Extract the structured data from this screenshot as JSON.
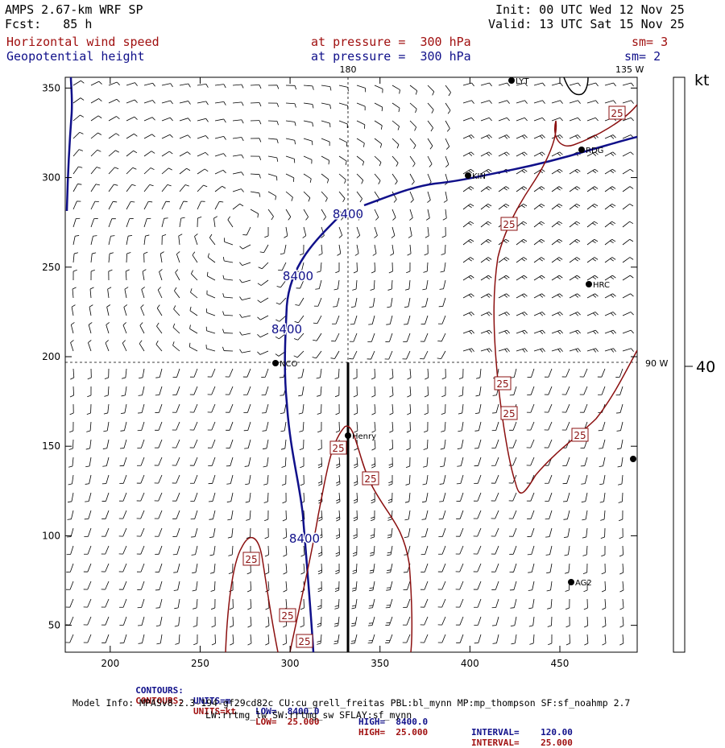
{
  "header": {
    "model": "AMPS 2.67-km WRF SP",
    "init": "Init: 00 UTC Wed 12 Nov 25",
    "forecast": "Fcst:   85 h",
    "valid": "Valid: 13 UTC Sat 15 Nov 25",
    "field1_name": "Horizontal wind speed",
    "field1_level": "at pressure =  300 hPa",
    "field1_sm": "sm= 3",
    "field2_name": "Geopotential height",
    "field2_level": "at pressure =  300 hPa",
    "field2_sm": "sm= 2"
  },
  "chart_data": {
    "type": "contour map with wind barbs",
    "title": "Horizontal wind speed / Geopotential height at 300 hPa",
    "x_axis": {
      "range": [
        175,
        493
      ],
      "ticks": [
        200,
        250,
        300,
        350,
        400,
        450
      ]
    },
    "y_axis": {
      "range": [
        35,
        356
      ],
      "ticks": [
        50,
        100,
        150,
        200,
        250,
        300,
        350
      ]
    },
    "grid_lines": {
      "meridian_180": {
        "label": "180",
        "x": 334
      },
      "parallel_90W": {
        "label": "90 W",
        "y": 196
      },
      "corner_label": "135 W"
    },
    "height_contours": {
      "units": "m",
      "value": 8400,
      "labels": [
        "8400",
        "8400",
        "8400",
        "8400"
      ]
    },
    "speed_contours": {
      "units": "kt",
      "value": 25,
      "labels": [
        "25",
        "25",
        "25",
        "25",
        "25",
        "25",
        "25",
        "25",
        "25",
        "25"
      ]
    },
    "stations": [
      "LYT",
      "RDG",
      "KIN",
      "HRC",
      "NCO",
      "Henry",
      "AG2",
      ""
    ],
    "barb_scale": {
      "unit": "kt",
      "value": "40"
    },
    "section_line": {
      "x": 334,
      "y_from": 35,
      "y_to": 196
    }
  },
  "footer": {
    "contours_height": {
      "label": "CONTOURS:",
      "units": "UNITS=m",
      "low": "LOW=  8400.0",
      "high": "HIGH=  8400.0",
      "interval": "INTERVAL=    120.00"
    },
    "contours_speed": {
      "label": "CONTOURS:",
      "units": "UNITS=kt",
      "low": "LOW=  25.000",
      "high": "HIGH=  25.000",
      "interval": "INTERVAL=    25.000"
    },
    "model_info_1": "Model Info: MPASv8.2.3-194-gf29cd82c CU:cu_grell_freitas PBL:bl_mynn MP:mp_thompson SF:sf_noahmp 2.7",
    "model_info_2": "LW:rrtmg_lw SW:rrtmg_sw SFLAY:sf_mynn"
  },
  "colors": {
    "height": "#10108a",
    "speed": "#8b1010",
    "barb": "#000000"
  }
}
